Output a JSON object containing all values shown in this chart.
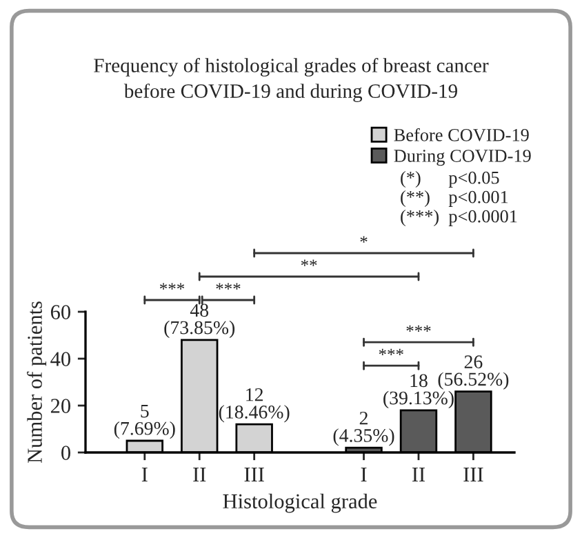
{
  "chart_data": {
    "type": "bar",
    "title": "Frequency of histological grades of breast cancer\nbefore COVID-19 and during COVID-19",
    "xlabel": "Histological grade",
    "ylabel": "Number of patients",
    "categories": [
      "I",
      "II",
      "III",
      null,
      "I",
      "II",
      "III"
    ],
    "series": [
      {
        "name": "Before COVID-19",
        "color": "#d3d3d3",
        "values": [
          5,
          48,
          12,
          null,
          null,
          null,
          null
        ],
        "value_labels": [
          "5\n(7.69%)",
          "48\n(73.85%)",
          "12\n(18.46%)",
          null,
          null,
          null,
          null
        ]
      },
      {
        "name": "During COVID-19",
        "color": "#5a5a5a",
        "values": [
          null,
          null,
          null,
          null,
          2,
          18,
          26
        ],
        "value_labels": [
          null,
          null,
          null,
          null,
          "2\n(4.35%)",
          "18\n(39.13%)",
          "26\n(56.52%)"
        ]
      }
    ],
    "ylim": [
      0,
      60
    ],
    "yticks": [
      0,
      20,
      40,
      60
    ],
    "grid": false,
    "legend": "top right",
    "annotations": [
      "(*)      p<0.05",
      "(**)    p<0.001",
      "(***)  p<0.0001",
      "***",
      "***",
      "**",
      "*",
      "***",
      "***"
    ]
  }
}
